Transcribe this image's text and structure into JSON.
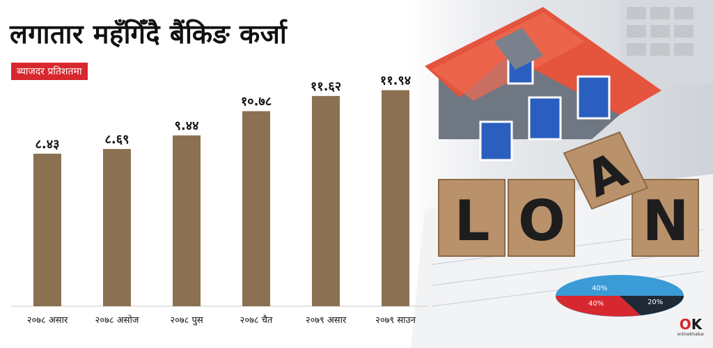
{
  "chart_data": {
    "type": "bar",
    "title": "लगातार महँगिँदै बैंकिङ कर्जा",
    "subtitle": "ब्याजदर प्रतिशतमा",
    "categories": [
      "२०७८ असार",
      "२०७८ असोज",
      "२०७८ पुस",
      "२०७८ चैत",
      "२०७९ असार",
      "२०७९ साउन"
    ],
    "values": [
      8.43,
      8.69,
      9.44,
      10.78,
      11.62,
      11.94
    ],
    "value_labels": [
      "८.४३",
      "८.६९",
      "९.४४",
      "१०.७८",
      "११.६२",
      "११.९४"
    ],
    "bar_color": "#8b7152",
    "ylim": [
      0,
      12.5
    ],
    "grid": false,
    "legend": "none"
  },
  "photo": {
    "word_blocks": [
      "L",
      "O",
      "A",
      "N"
    ],
    "pie_labels": [
      "40%",
      "40%",
      "20%"
    ]
  },
  "logo": {
    "mark_left": "O",
    "mark_right": "K",
    "text": "onlinekhabar"
  },
  "colors": {
    "accent": "#d7282f",
    "bar": "#8b7152",
    "axis": "#c9c9c9"
  }
}
